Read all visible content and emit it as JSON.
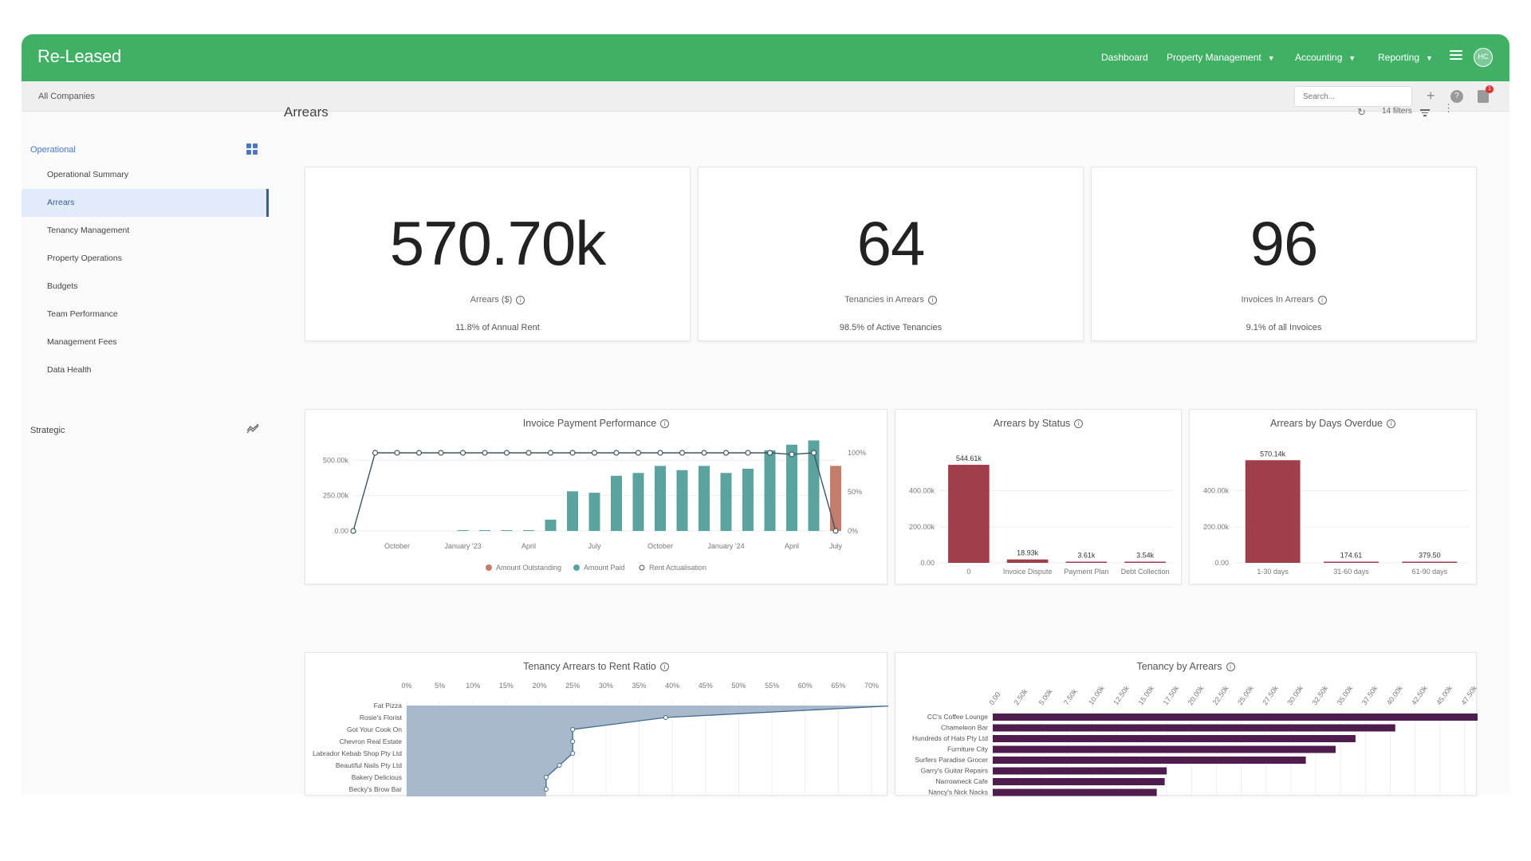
{
  "app": {
    "logo": "Re-Leased",
    "nav": [
      {
        "label": "Dashboard",
        "dropdown": false
      },
      {
        "label": "Property Management",
        "dropdown": true
      },
      {
        "label": "Accounting",
        "dropdown": true
      },
      {
        "label": "Reporting",
        "dropdown": true
      }
    ],
    "avatar": "HC",
    "brand_color": "#40b065"
  },
  "subbar": {
    "company": "All Companies",
    "search_placeholder": "Search...",
    "notification_count": "1"
  },
  "sidebar": {
    "sections": [
      {
        "label": "Operational",
        "color": "#4a78c6",
        "icon": "grid-icon"
      },
      {
        "label": "Strategic",
        "color": "#444444",
        "icon": "trend-icon"
      }
    ],
    "items": [
      {
        "label": "Operational Summary",
        "active": false
      },
      {
        "label": "Arrears",
        "active": true
      },
      {
        "label": "Tenancy Management",
        "active": false
      },
      {
        "label": "Property Operations",
        "active": false
      },
      {
        "label": "Budgets",
        "active": false
      },
      {
        "label": "Team Performance",
        "active": false
      },
      {
        "label": "Management Fees",
        "active": false
      },
      {
        "label": "Data Health",
        "active": false
      }
    ]
  },
  "main": {
    "title": "Arrears",
    "filters": "14 filters"
  },
  "kpis": [
    {
      "value": "570.70k",
      "label": "Arrears ($)",
      "sub": "11.8% of Annual Rent"
    },
    {
      "value": "64",
      "label": "Tenancies in Arrears",
      "sub": "98.5% of Active Tenancies"
    },
    {
      "value": "96",
      "label": "Invoices In Arrears",
      "sub": "9.1% of all Invoices"
    }
  ],
  "chart_data": [
    {
      "type": "bar",
      "title": "Invoice Payment Performance",
      "x_tick_labels": [
        "October",
        "January '23",
        "April",
        "July",
        "October",
        "January '24",
        "April",
        "July"
      ],
      "y_left_ticks": [
        "500.00k",
        "250.00k",
        "0.00"
      ],
      "y_left_lim": [
        0,
        620000
      ],
      "y_right_ticks": [
        "100%",
        "50%",
        "0%"
      ],
      "series": [
        {
          "name": "Amount Outstanding",
          "type": "bar",
          "color": "#c47c6b",
          "values": [
            0,
            0,
            0,
            0,
            0,
            0,
            0,
            0,
            0,
            0,
            0,
            0,
            0,
            0,
            0,
            0,
            0,
            0,
            0,
            0,
            0,
            0,
            460000
          ]
        },
        {
          "name": "Amount Paid",
          "type": "bar",
          "color": "#5ba39e",
          "values": [
            0,
            0,
            0,
            0,
            0,
            2000,
            3000,
            4000,
            5000,
            80000,
            280000,
            270000,
            390000,
            410000,
            460000,
            430000,
            460000,
            410000,
            440000,
            570000,
            610000,
            640000,
            0
          ]
        },
        {
          "name": "Rent Actualisation",
          "type": "line",
          "color": "#3f5666",
          "values": [
            0,
            100,
            100,
            100,
            100,
            100,
            100,
            100,
            100,
            100,
            100,
            100,
            100,
            100,
            100,
            100,
            100,
            100,
            100,
            100,
            98,
            100,
            0
          ]
        }
      ]
    },
    {
      "type": "bar",
      "title": "Arrears by Status",
      "categories": [
        "0",
        "Invoice Dispute",
        "Payment Plan",
        "Debt Collection"
      ],
      "values": [
        544610,
        18930,
        3610,
        3540
      ],
      "data_labels": [
        "544.61k",
        "18.93k",
        "3.61k",
        "3.54k"
      ],
      "y_ticks": [
        "400.00k",
        "200.00k",
        "0.00"
      ],
      "ylim": [
        0,
        620000
      ],
      "color": "#a03e4c"
    },
    {
      "type": "bar",
      "title": "Arrears by Days Overdue",
      "categories": [
        "1-30 days",
        "31-60 days",
        "61-90 days"
      ],
      "values": [
        570140,
        174.61,
        379.5
      ],
      "data_labels": [
        "570.14k",
        "174.61",
        "379.50"
      ],
      "y_ticks": [
        "400.00k",
        "200.00k",
        "0.00"
      ],
      "ylim": [
        0,
        620000
      ],
      "color": "#a03e4c"
    },
    {
      "type": "area",
      "title": "Tenancy Arrears to Rent Ratio",
      "categories": [
        "Fat Pizza",
        "Rosie's Florist",
        "Got Your Cook On",
        "Chevron Real Estate",
        "Labrador Kebab Shop Pty Ltd",
        "Beautiful Nails Pty Ltd",
        "Bakery Delicious",
        "Becky's Brow Bar"
      ],
      "values": [
        74,
        39,
        25,
        25,
        25,
        23,
        21,
        21
      ],
      "x_ticks": [
        "0%",
        "5%",
        "10%",
        "15%",
        "20%",
        "25%",
        "30%",
        "35%",
        "40%",
        "45%",
        "50%",
        "55%",
        "60%",
        "65%",
        "70%"
      ],
      "xlim": [
        0,
        70
      ],
      "color": "#a9b9cd",
      "line_color": "#3f6a8a"
    },
    {
      "type": "bar",
      "orientation": "horizontal",
      "title": "Tenancy by Arrears",
      "categories": [
        "CC's Coffee Lounge",
        "Chameleon Bar",
        "Hundreds of Hats Pty Ltd",
        "Furniture City",
        "Surfers Paradise Grocer",
        "Garry's Guitar Repairs",
        "Narrowneck Cafe",
        "Nancy's Nick Nacks"
      ],
      "values": [
        49500,
        40500,
        36500,
        34500,
        31500,
        17500,
        17300,
        16500
      ],
      "x_ticks": [
        "0.00",
        "2.50k",
        "5.00k",
        "7.50k",
        "10.00k",
        "12.50k",
        "15.00k",
        "17.50k",
        "20.00k",
        "22.50k",
        "25.00k",
        "27.50k",
        "30.00k",
        "32.50k",
        "35.00k",
        "37.50k",
        "40.00k",
        "42.50k",
        "45.00k",
        "47.50k"
      ],
      "xlim": [
        0,
        47500
      ],
      "color": "#4e1d4e"
    }
  ]
}
